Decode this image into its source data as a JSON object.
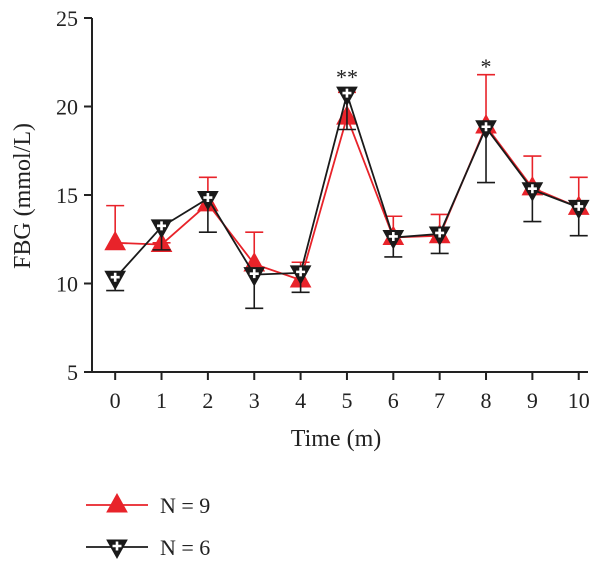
{
  "chart_data": {
    "type": "line",
    "title": "",
    "xlabel": "Time (m)",
    "ylabel": "FBG (mmol/L)",
    "xlim": [
      -0.5,
      10.2
    ],
    "ylim": [
      5,
      25
    ],
    "x": [
      0,
      1,
      2,
      3,
      4,
      5,
      6,
      7,
      8,
      9,
      10
    ],
    "x_tick_labels": [
      "0",
      "1",
      "2",
      "3",
      "4",
      "5",
      "6",
      "7",
      "8",
      "9",
      "10"
    ],
    "y_ticks": [
      5,
      10,
      15,
      20,
      25
    ],
    "y_tick_labels": [
      "5",
      "10",
      "15",
      "20",
      "25"
    ],
    "grid": false,
    "legend_position": "bottom-left",
    "series": [
      {
        "name": "N = 9",
        "color": "#e8232a",
        "marker": "triangle-up-filled",
        "values": [
          12.3,
          12.2,
          14.5,
          11.1,
          10.2,
          19.4,
          12.6,
          12.7,
          18.9,
          15.4,
          14.3
        ],
        "error_upper": [
          14.4,
          12.3,
          16.0,
          12.9,
          11.2,
          20.8,
          13.8,
          13.9,
          21.8,
          17.2,
          16.0
        ],
        "error_lower": [
          null,
          null,
          null,
          null,
          null,
          null,
          null,
          null,
          null,
          null,
          null
        ]
      },
      {
        "name": "N = 6",
        "color": "#1a1a1a",
        "marker": "triangle-down-open-cross",
        "values": [
          10.3,
          13.2,
          14.8,
          10.5,
          10.6,
          20.7,
          12.6,
          12.8,
          18.8,
          15.3,
          14.3
        ],
        "error_upper": [
          null,
          null,
          null,
          null,
          null,
          null,
          null,
          null,
          null,
          null,
          null
        ],
        "error_lower": [
          9.6,
          11.9,
          12.9,
          8.6,
          9.5,
          18.7,
          11.5,
          11.7,
          15.7,
          13.5,
          12.7
        ]
      }
    ],
    "annotations": [
      {
        "x": 5,
        "y": 21.8,
        "text": "**"
      },
      {
        "x": 8,
        "y": 22.4,
        "text": "*"
      }
    ]
  }
}
